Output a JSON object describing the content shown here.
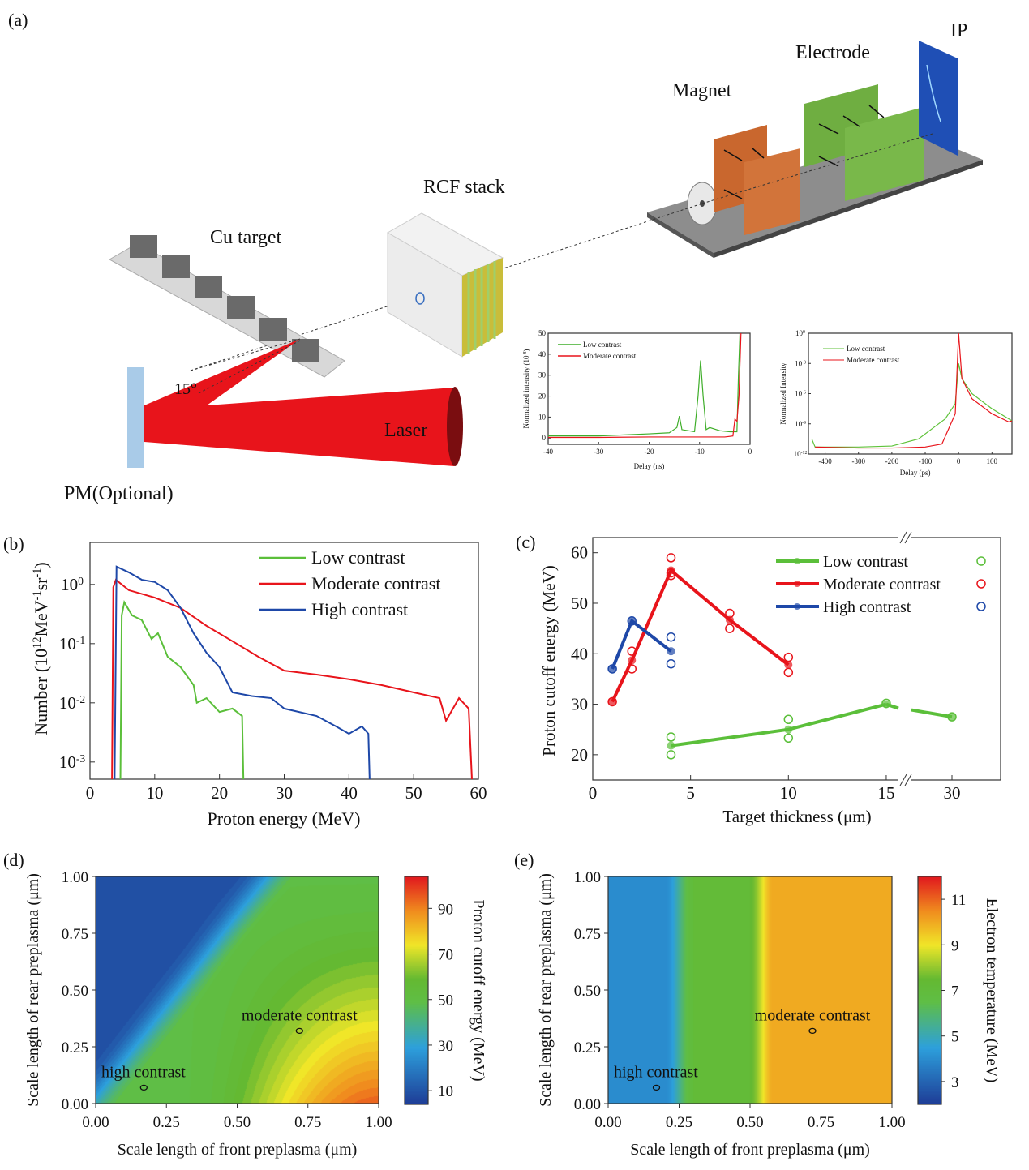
{
  "panel_labels": {
    "a": "(a)",
    "b": "(b)",
    "c": "(c)",
    "d": "(d)",
    "e": "(e)"
  },
  "schematic": {
    "ip": "IP",
    "electrode": "Electrode",
    "magnet": "Magnet",
    "rcf_stack": "RCF stack",
    "cu_target": "Cu target",
    "angle": "15°",
    "laser": "Laser",
    "pm": "PM(Optional)",
    "colors": {
      "laser": "#e8141b",
      "magnet": "#d2743a",
      "electrode": "#79b84a",
      "ip": "#1f4fb5",
      "pm": "#a9cbe8"
    }
  },
  "chart_data": [
    {
      "id": "inset-ns",
      "type": "line",
      "xlabel": "Delay (ns)",
      "ylabel": "Normalized intensity (10",
      "ylabel_sup": "-8",
      "ylabel_end": ")",
      "xlim": [
        -40,
        0
      ],
      "ylim": [
        -3,
        50
      ],
      "xticks": [
        -40,
        -30,
        -20,
        -10,
        0
      ],
      "yticks": [
        0,
        10,
        20,
        30,
        40,
        50
      ],
      "legend_placement": "top-left",
      "series": [
        {
          "name": "Low contrast",
          "color": "#3fae2a",
          "x": [
            -40,
            -30,
            -25,
            -20,
            -16,
            -14.5,
            -14,
            -13.5,
            -11,
            -10.3,
            -9.8,
            -9.3,
            -8.7,
            -8,
            -6,
            -4,
            -2.6,
            -2.3,
            -2.0
          ],
          "y": [
            1,
            1,
            1.5,
            2,
            2.5,
            5,
            10.5,
            4,
            3,
            20,
            37,
            20,
            4,
            5,
            3.5,
            3,
            3,
            30,
            50
          ]
        },
        {
          "name": "Moderate contrast",
          "color": "#e8141b",
          "x": [
            -40,
            -30,
            -20,
            -10,
            -5,
            -3.4,
            -3,
            -2.6,
            -2.2,
            -1.8
          ],
          "y": [
            0.3,
            0.3,
            0.5,
            0.5,
            0.5,
            1,
            9,
            8,
            20,
            50
          ]
        }
      ]
    },
    {
      "id": "inset-ps",
      "type": "line",
      "xlabel": "Delay (ps)",
      "ylabel": "Normalized Intensity",
      "xlim": [
        -450,
        160
      ],
      "ylim_log10": [
        -12,
        0
      ],
      "xticks": [
        -400,
        -300,
        -200,
        -100,
        0,
        100
      ],
      "yticks_exp": [
        0,
        -3,
        -6,
        -9,
        -12
      ],
      "yscale": "log",
      "legend_placement": "top-left",
      "series": [
        {
          "name": "Low contrast",
          "color": "#5fc23a",
          "x": [
            -440,
            -430,
            -300,
            -200,
            -120,
            -80,
            -40,
            -10,
            0,
            10,
            40,
            100,
            150,
            160
          ],
          "log10_y": [
            -10.5,
            -11.3,
            -11.3,
            -11.2,
            -10.5,
            -9.5,
            -8.5,
            -7,
            -3,
            -4.5,
            -6,
            -7.5,
            -8.5,
            -8.7
          ]
        },
        {
          "name": "Moderate contrast",
          "color": "#e8141b",
          "x": [
            -430,
            -300,
            -200,
            -100,
            -50,
            -30,
            -10,
            0,
            10,
            40,
            100,
            150,
            160
          ],
          "log10_y": [
            -11.3,
            -11.4,
            -11.4,
            -11.3,
            -11,
            -9.5,
            -8,
            0,
            -4.5,
            -6.5,
            -8,
            -8.8,
            -8.7
          ]
        }
      ]
    },
    {
      "id": "b",
      "type": "line",
      "xlabel": "Proton energy (MeV)",
      "ylabel_parts": [
        [
          "Number (10",
          0
        ],
        [
          "12",
          1
        ],
        [
          "MeV",
          0
        ],
        [
          "-1",
          1
        ],
        [
          "sr",
          0
        ],
        [
          "-1",
          1
        ],
        [
          ")",
          0
        ]
      ],
      "yscale": "log",
      "xlim": [
        0,
        60
      ],
      "ylim_log10": [
        -3.29,
        0.71
      ],
      "xticks": [
        0,
        10,
        20,
        30,
        40,
        50,
        60
      ],
      "yticks_exp": [
        0,
        -1,
        -2,
        -3
      ],
      "legend_placement": "top-right",
      "series": [
        {
          "name": "Low contrast",
          "color": "#5bbf3a",
          "x": [
            4.7,
            4.9,
            5.3,
            6.5,
            8,
            9.5,
            10.5,
            12,
            14,
            16,
            16.5,
            18,
            20,
            22,
            23.5,
            23.7
          ],
          "y": [
            0.0005,
            0.3,
            0.5,
            0.3,
            0.25,
            0.12,
            0.15,
            0.06,
            0.04,
            0.02,
            0.01,
            0.012,
            0.007,
            0.008,
            0.006,
            0.0005
          ]
        },
        {
          "name": "Moderate contrast",
          "color": "#e8141b",
          "x": [
            3.4,
            3.6,
            4,
            6,
            10,
            14,
            18,
            22,
            26,
            30,
            35,
            40,
            45,
            50,
            54,
            55,
            57,
            58.5,
            59
          ],
          "y": [
            0.0005,
            0.9,
            1.2,
            0.8,
            0.6,
            0.4,
            0.2,
            0.11,
            0.06,
            0.035,
            0.03,
            0.025,
            0.02,
            0.015,
            0.012,
            0.005,
            0.012,
            0.008,
            0.0005
          ]
        },
        {
          "name": "High contrast",
          "color": "#1e48a8",
          "x": [
            3.8,
            4.1,
            6,
            8,
            10,
            12,
            14,
            16,
            18,
            20,
            22,
            25,
            28,
            30,
            35,
            38,
            40,
            42,
            43,
            43.2
          ],
          "y": [
            0.0005,
            2.0,
            1.6,
            1.2,
            1.1,
            0.8,
            0.4,
            0.15,
            0.07,
            0.04,
            0.015,
            0.013,
            0.012,
            0.008,
            0.006,
            0.004,
            0.003,
            0.004,
            0.003,
            0.0005
          ]
        }
      ]
    },
    {
      "id": "c",
      "type": "scatter",
      "xlabel": "Target thickness (μm)",
      "ylabel": "Proton cutoff energy (MeV)",
      "xticks": [
        0,
        5,
        10,
        15,
        30
      ],
      "x_axis_break": [
        15,
        30
      ],
      "ylim": [
        15,
        63
      ],
      "yticks": [
        20,
        30,
        40,
        50,
        60
      ],
      "legend_placement": "top-right",
      "series": [
        {
          "name": "Low contrast",
          "color": "#5bbf3a",
          "mean": [
            [
              4,
              21.8
            ],
            [
              10,
              25
            ],
            [
              15,
              30
            ],
            [
              30,
              27.5
            ]
          ],
          "shots": [
            [
              4,
              23.5
            ],
            [
              4,
              20
            ],
            [
              10,
              27
            ],
            [
              10,
              23.3
            ],
            [
              15,
              30.2
            ],
            [
              30,
              27.5
            ]
          ]
        },
        {
          "name": "Moderate contrast",
          "color": "#e8141b",
          "mean": [
            [
              1,
              30.5
            ],
            [
              2,
              38.7
            ],
            [
              4,
              56.5
            ],
            [
              7,
              46.7
            ],
            [
              10,
              37.8
            ]
          ],
          "shots": [
            [
              1,
              30.5
            ],
            [
              2,
              40.5
            ],
            [
              2,
              37
            ],
            [
              4,
              59
            ],
            [
              4,
              56
            ],
            [
              4,
              55.5
            ],
            [
              7,
              48
            ],
            [
              7,
              45
            ],
            [
              10,
              39.3
            ],
            [
              10,
              36.3
            ]
          ]
        },
        {
          "name": "High contrast",
          "color": "#1e48a8",
          "mean": [
            [
              1,
              37
            ],
            [
              2,
              46.5
            ],
            [
              4,
              40.5
            ]
          ],
          "shots": [
            [
              1,
              37
            ],
            [
              2,
              46.5
            ],
            [
              4,
              43.3
            ],
            [
              4,
              38
            ]
          ]
        }
      ]
    },
    {
      "id": "d",
      "type": "heatmap",
      "xlabel": "Scale length of front preplasma (μm)",
      "ylabel": "Scale length of rear preplasma (μm)",
      "colorbar_label": "Proton cutoff energy (MeV)",
      "xlim": [
        0,
        1
      ],
      "ylim": [
        0,
        1
      ],
      "xticks": [
        "0.00",
        "0.25",
        "0.50",
        "0.75",
        "1.00"
      ],
      "yticks": [
        "0.00",
        "0.25",
        "0.50",
        "0.75",
        "1.00"
      ],
      "colorbar_range": [
        4,
        104
      ],
      "colorbar_ticks": [
        10,
        30,
        50,
        70,
        90
      ],
      "annotations": [
        {
          "text": "moderate contrast",
          "x": 0.72,
          "y": 0.32
        },
        {
          "text": "high contrast",
          "x": 0.17,
          "y": 0.07
        }
      ]
    },
    {
      "id": "e",
      "type": "heatmap",
      "xlabel": "Scale length of front preplasma (μm)",
      "ylabel": "Scale length of rear preplasma (μm)",
      "colorbar_label": "Electron temperature (MeV)",
      "xlim": [
        0,
        1
      ],
      "ylim": [
        0,
        1
      ],
      "xticks": [
        "0.00",
        "0.25",
        "0.50",
        "0.75",
        "1.00"
      ],
      "yticks": [
        "0.00",
        "0.25",
        "0.50",
        "0.75",
        "1.00"
      ],
      "colorbar_range": [
        2,
        12
      ],
      "colorbar_ticks": [
        3,
        5,
        7,
        9,
        11
      ],
      "annotations": [
        {
          "text": "moderate contrast",
          "x": 0.72,
          "y": 0.32
        },
        {
          "text": "high contrast",
          "x": 0.17,
          "y": 0.07
        }
      ]
    }
  ]
}
